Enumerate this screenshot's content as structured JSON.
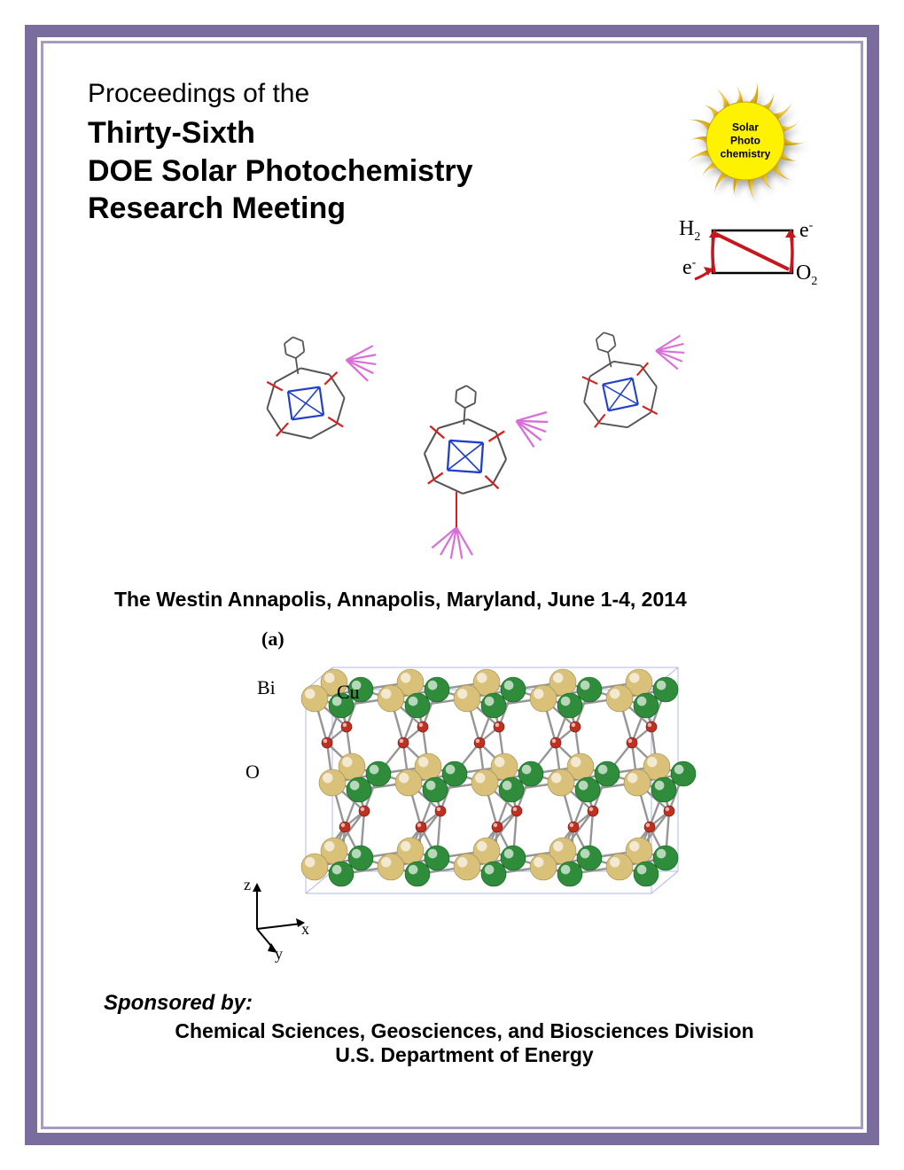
{
  "colors": {
    "border_outer": "#7b6c9e",
    "border_inner": "#a79bc2",
    "page_bg": "#ffffff",
    "text": "#000000",
    "sun_fill": "#fff200",
    "sun_ray_dark": "#b58a00",
    "sun_ray_light": "#ffd84a",
    "z_red": "#c7161d",
    "mol_gray": "#555555",
    "mol_blue": "#2040cc",
    "mol_red": "#d82020",
    "mol_pink": "#d86fd8",
    "cry_tan": "#d9c17a",
    "cry_green": "#2e8c3a",
    "cry_small_red": "#c03020",
    "cry_bond": "#969696",
    "cry_box": "#b0b8e8"
  },
  "title": {
    "pretitle": "Proceedings of the",
    "line1": "Thirty-Sixth",
    "line2": "DOE Solar Photochemistry",
    "line3": "Research Meeting"
  },
  "sun": {
    "line1": "Solar",
    "line2": "Photo",
    "line3": "chemistry"
  },
  "zscheme": {
    "h2": "H",
    "e_minus": "e",
    "o2": "O"
  },
  "venue": "The Westin Annapolis, Annapolis, Maryland, June 1-4, 2014",
  "crystal": {
    "panel_label": "(a)",
    "elem_bi": "Bi",
    "elem_cu": "Cu",
    "elem_o": "O",
    "axis_z": "z",
    "axis_x": "x",
    "axis_y": "y"
  },
  "sponsor": {
    "intro": "Sponsored by:",
    "line1": "Chemical Sciences, Geosciences, and Biosciences Division",
    "line2": "U.S. Department of Energy"
  }
}
